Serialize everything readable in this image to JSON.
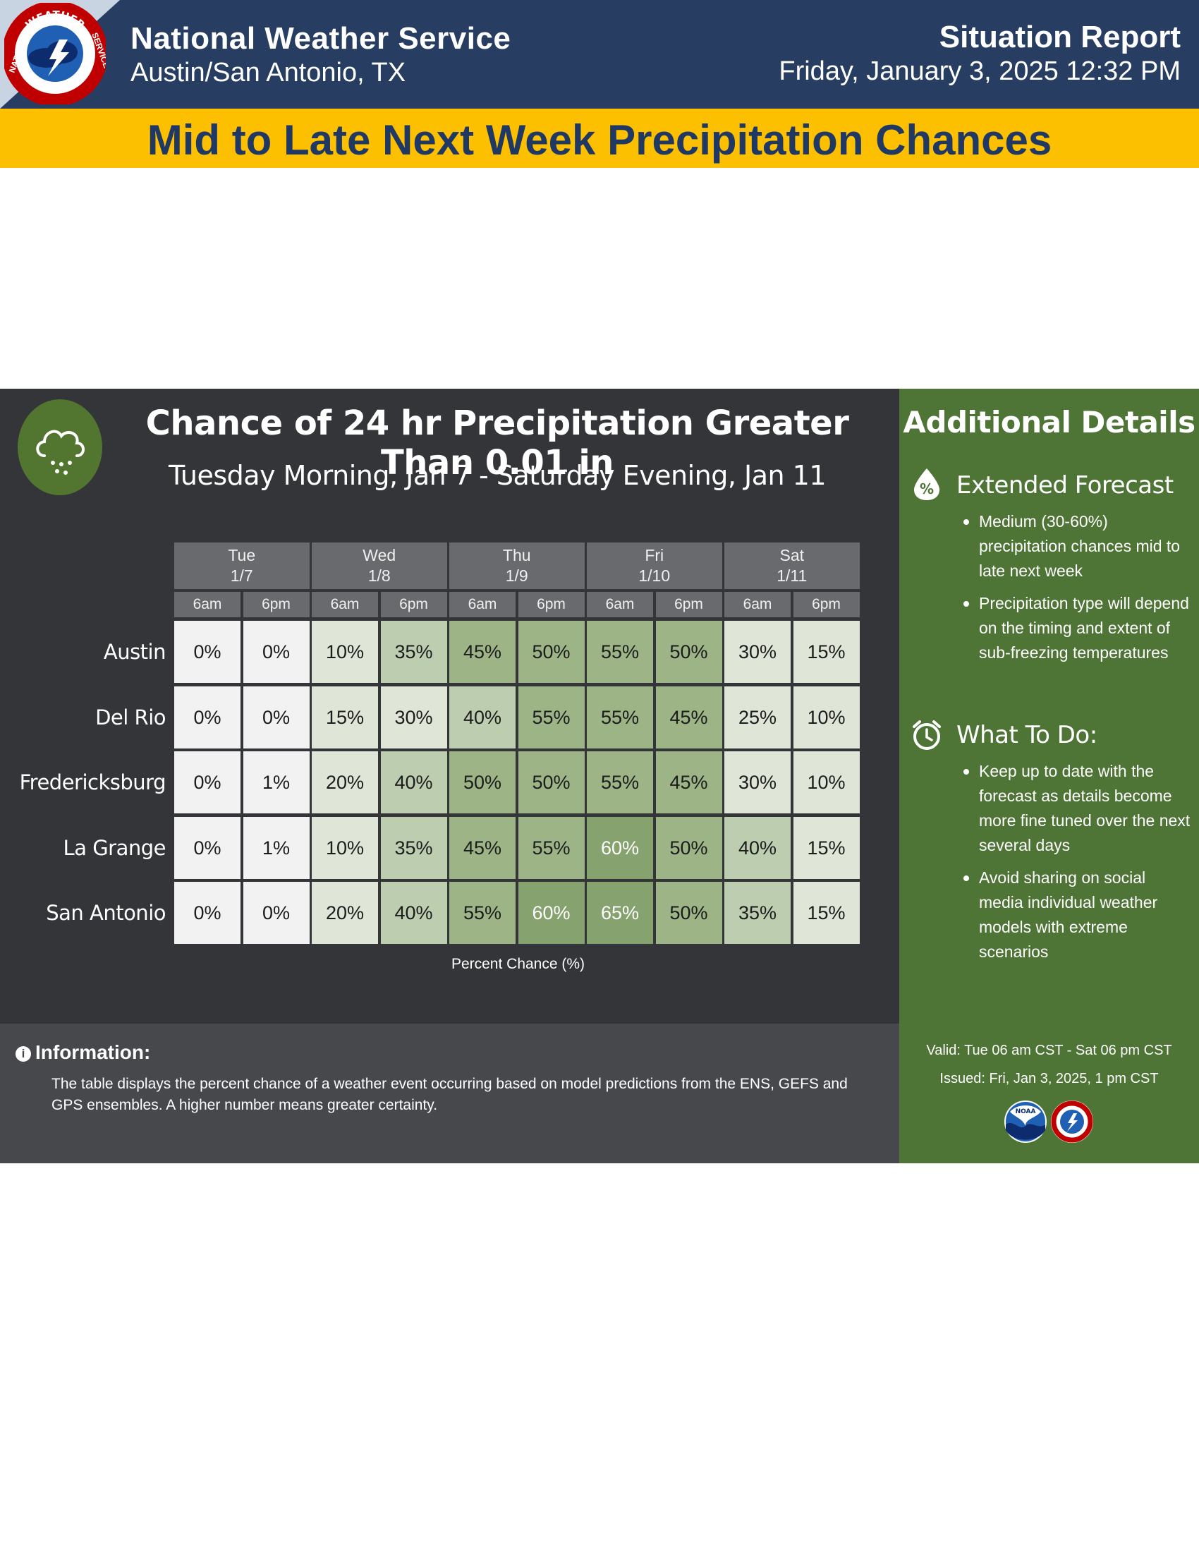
{
  "header": {
    "org_name": "National Weather Service",
    "office": "Austin/San Antonio, TX",
    "report_title": "Situation Report",
    "report_date": "Friday, January 3, 2025  12:32 PM",
    "logo_letters_top": "WEATHER",
    "logo_letters_left": "NATIONAL",
    "logo_letters_right": "SERVICE"
  },
  "banner": {
    "text": "Mid to Late Next Week Precipitation Chances"
  },
  "graphic": {
    "title": "Chance of 24 hr Precipitation Greater Than 0.01 in",
    "subtitle": "Tuesday Morning, Jan 7 - Saturday Evening, Jan 11",
    "legend_label": "Percent Chance (%)",
    "icon": "cloud-rain-icon"
  },
  "chart_data": {
    "type": "table",
    "title": "Chance of 24 hr Precipitation Greater Than 0.01 in",
    "subtitle": "Tuesday Morning, Jan 7 - Saturday Evening, Jan 11",
    "days": [
      {
        "day": "Tue",
        "date": "1/7"
      },
      {
        "day": "Wed",
        "date": "1/8"
      },
      {
        "day": "Thu",
        "date": "1/9"
      },
      {
        "day": "Fri",
        "date": "1/10"
      },
      {
        "day": "Sat",
        "date": "1/11"
      }
    ],
    "times": [
      "6am",
      "6pm"
    ],
    "unit": "%",
    "rows": [
      {
        "location": "Austin",
        "values": [
          0,
          0,
          10,
          35,
          45,
          50,
          55,
          50,
          30,
          15
        ]
      },
      {
        "location": "Del Rio",
        "values": [
          0,
          0,
          15,
          30,
          40,
          55,
          55,
          45,
          25,
          10
        ]
      },
      {
        "location": "Fredericksburg",
        "values": [
          0,
          1,
          20,
          40,
          50,
          50,
          55,
          45,
          30,
          10
        ]
      },
      {
        "location": "La Grange",
        "values": [
          0,
          1,
          10,
          35,
          45,
          55,
          60,
          50,
          40,
          15
        ]
      },
      {
        "location": "San Antonio",
        "values": [
          0,
          0,
          20,
          40,
          55,
          60,
          65,
          50,
          35,
          15
        ]
      }
    ],
    "colors": {
      "zero": "#f2f2f2",
      "low": "#dfe6d8",
      "mid": "#bccdb0",
      "high": "#9cb486",
      "highest": "#86a36f",
      "text_dark": "#1c1c1c",
      "text_light": "#ffffff"
    }
  },
  "information": {
    "title": "Information:",
    "body": "The table displays the percent chance of a weather event occurring based on model predictions from the ENS, GEFS and GPS ensembles. A higher number means greater certainty."
  },
  "side": {
    "title": "Additional Details",
    "sections": [
      {
        "title": "Extended Forecast",
        "icon": "percent-drop-icon",
        "bullets": [
          "Medium (30-60%) precipitation chances mid to late next week",
          "Precipitation type will depend on the timing and extent of sub-freezing temperatures"
        ]
      },
      {
        "title": "What To Do:",
        "icon": "alarm-clock-icon",
        "bullets": [
          "Keep up to date with the forecast as details become more fine tuned over the next several days",
          "Avoid sharing on social media individual weather models with extreme scenarios"
        ]
      }
    ],
    "valid": "Valid: Tue 06 am CST - Sat 06 pm CST",
    "issued": "Issued: Fri, Jan 3, 2025, 1 pm CST",
    "noaa_logo_text": "NOAA"
  }
}
